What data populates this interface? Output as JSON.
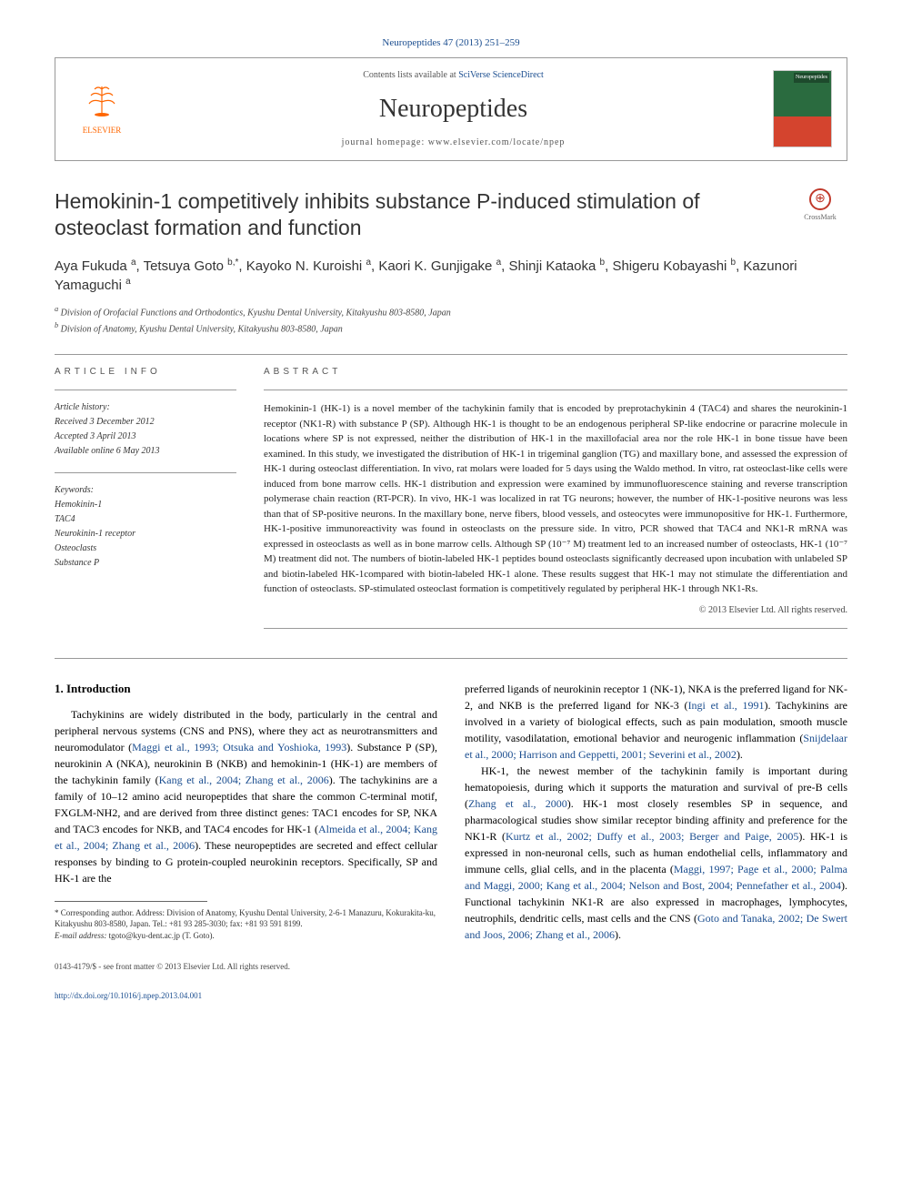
{
  "journal_citation": "Neuropeptides 47 (2013) 251–259",
  "publisher": "ELSEVIER",
  "contents_prefix": "Contents lists available at ",
  "contents_link": "SciVerse ScienceDirect",
  "journal_name": "Neuropeptides",
  "homepage_prefix": "journal homepage: ",
  "homepage_url": "www.elsevier.com/locate/npep",
  "cover_label": "Neuropeptides",
  "crossmark": "CrossMark",
  "title": "Hemokinin-1 competitively inhibits substance P-induced stimulation of osteoclast formation and function",
  "authors_html": "Aya Fukuda <sup>a</sup>, Tetsuya Goto <sup>b,*</sup>, Kayoko N. Kuroishi <sup>a</sup>, Kaori K. Gunjigake <sup>a</sup>, Shinji Kataoka <sup>b</sup>, Shigeru Kobayashi <sup>b</sup>, Kazunori Yamaguchi <sup>a</sup>",
  "affiliations": {
    "a": "Division of Orofacial Functions and Orthodontics, Kyushu Dental University, Kitakyushu 803-8580, Japan",
    "b": "Division of Anatomy, Kyushu Dental University, Kitakyushu 803-8580, Japan"
  },
  "info_heading": "ARTICLE INFO",
  "abstract_heading": "ABSTRACT",
  "history_label": "Article history:",
  "history": {
    "received": "Received 3 December 2012",
    "accepted": "Accepted 3 April 2013",
    "online": "Available online 6 May 2013"
  },
  "keywords_label": "Keywords:",
  "keywords": [
    "Hemokinin-1",
    "TAC4",
    "Neurokinin-1 receptor",
    "Osteoclasts",
    "Substance P"
  ],
  "abstract": "Hemokinin-1 (HK-1) is a novel member of the tachykinin family that is encoded by preprotachykinin 4 (TAC4) and shares the neurokinin-1 receptor (NK1-R) with substance P (SP). Although HK-1 is thought to be an endogenous peripheral SP-like endocrine or paracrine molecule in locations where SP is not expressed, neither the distribution of HK-1 in the maxillofacial area nor the role HK-1 in bone tissue have been examined. In this study, we investigated the distribution of HK-1 in trigeminal ganglion (TG) and maxillary bone, and assessed the expression of HK-1 during osteoclast differentiation. In vivo, rat molars were loaded for 5 days using the Waldo method. In vitro, rat osteoclast-like cells were induced from bone marrow cells. HK-1 distribution and expression were examined by immunofluorescence staining and reverse transcription polymerase chain reaction (RT-PCR). In vivo, HK-1 was localized in rat TG neurons; however, the number of HK-1-positive neurons was less than that of SP-positive neurons. In the maxillary bone, nerve fibers, blood vessels, and osteocytes were immunopositive for HK-1. Furthermore, HK-1-positive immunoreactivity was found in osteoclasts on the pressure side. In vitro, PCR showed that TAC4 and NK1-R mRNA was expressed in osteoclasts as well as in bone marrow cells. Although SP (10⁻⁷ M) treatment led to an increased number of osteoclasts, HK-1 (10⁻⁷ M) treatment did not. The numbers of biotin-labeled HK-1 peptides bound osteoclasts significantly decreased upon incubation with unlabeled SP and biotin-labeled HK-1compared with biotin-labeled HK-1 alone. These results suggest that HK-1 may not stimulate the differentiation and function of osteoclasts. SP-stimulated osteoclast formation is competitively regulated by peripheral HK-1 through NK1-Rs.",
  "copyright": "© 2013 Elsevier Ltd. All rights reserved.",
  "section1_heading": "1. Introduction",
  "body_col1_p1": "Tachykinins are widely distributed in the body, particularly in the central and peripheral nervous systems (CNS and PNS), where they act as neurotransmitters and neuromodulator (Maggi et al., 1993; Otsuka and Yoshioka, 1993). Substance P (SP), neurokinin A (NKA), neurokinin B (NKB) and hemokinin-1 (HK-1) are members of the tachykinin family (Kang et al., 2004; Zhang et al., 2006). The tachykinins are a family of 10–12 amino acid neuropeptides that share the common C-terminal motif, FXGLM-NH2, and are derived from three distinct genes: TAC1 encodes for SP, NKA and TAC3 encodes for NKB, and TAC4 encodes for HK-1 (Almeida et al., 2004; Kang et al., 2004; Zhang et al., 2006). These neuropeptides are secreted and effect cellular responses by binding to G protein-coupled neurokinin receptors. Specifically, SP and HK-1 are the",
  "body_col2_p1": "preferred ligands of neurokinin receptor 1 (NK-1), NKA is the preferred ligand for NK-2, and NKB is the preferred ligand for NK-3 (Ingi et al., 1991). Tachykinins are involved in a variety of biological effects, such as pain modulation, smooth muscle motility, vasodilatation, emotional behavior and neurogenic inflammation (Snijdelaar et al., 2000; Harrison and Geppetti, 2001; Severini et al., 2002).",
  "body_col2_p2": "HK-1, the newest member of the tachykinin family is important during hematopoiesis, during which it supports the maturation and survival of pre-B cells (Zhang et al., 2000). HK-1 most closely resembles SP in sequence, and pharmacological studies show similar receptor binding affinity and preference for the NK1-R (Kurtz et al., 2002; Duffy et al., 2003; Berger and Paige, 2005). HK-1 is expressed in non-neuronal cells, such as human endothelial cells, inflammatory and immune cells, glial cells, and in the placenta (Maggi, 1997; Page et al., 2000; Palma and Maggi, 2000; Kang et al., 2004; Nelson and Bost, 2004; Pennefather et al., 2004). Functional tachykinin NK1-R are also expressed in macrophages, lymphocytes, neutrophils, dendritic cells, mast cells and the CNS (Goto and Tanaka, 2002; De Swert and Joos, 2006; Zhang et al., 2006).",
  "corresponding": "* Corresponding author. Address: Division of Anatomy, Kyushu Dental University, 2-6-1 Manazuru, Kokurakita-ku, Kitakyushu 803-8580, Japan. Tel.: +81 93 285-3030; fax: +81 93 591 8199.",
  "email_label": "E-mail address: ",
  "email": "tgoto@kyu-dent.ac.jp",
  "email_name": " (T. Goto).",
  "footer1": "0143-4179/$ - see front matter © 2013 Elsevier Ltd. All rights reserved.",
  "footer2": "http://dx.doi.org/10.1016/j.npep.2013.04.001",
  "link_color": "#1a4d8f",
  "accent_color": "#ff6600"
}
